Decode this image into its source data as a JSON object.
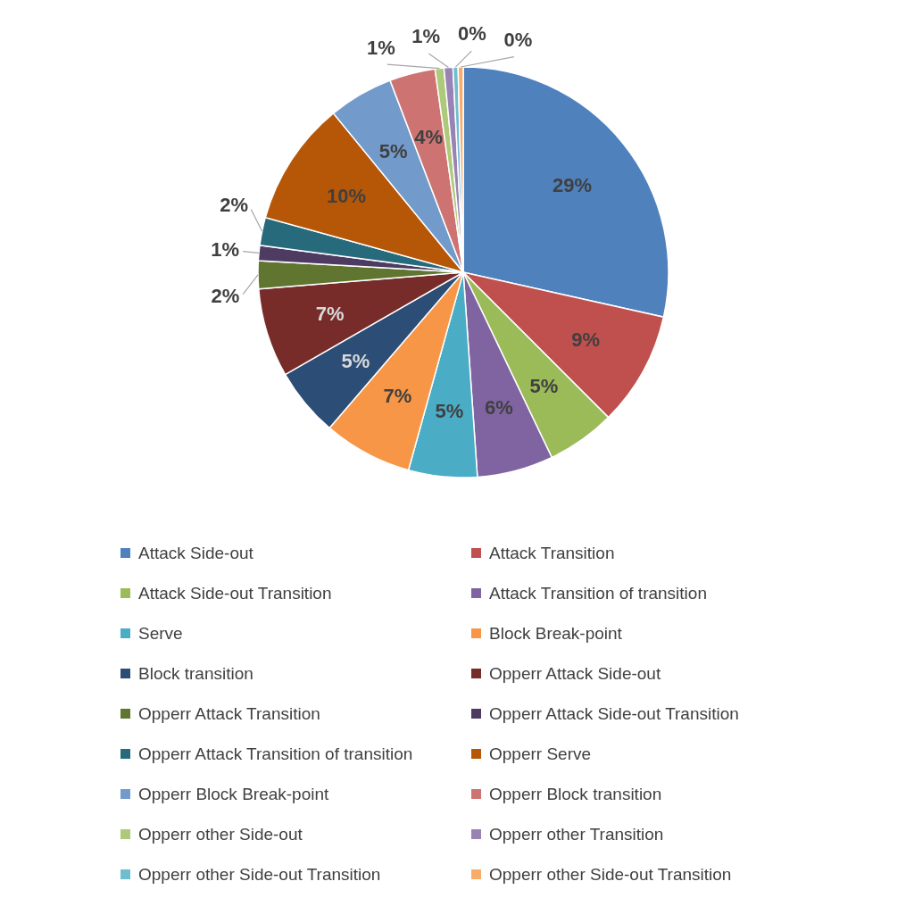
{
  "chart_data": {
    "type": "pie",
    "categories": [
      "Attack Side-out",
      "Attack Transition",
      "Attack Side-out Transition",
      "Attack Transition of transition",
      "Serve",
      "Block Break-point",
      "Block transition",
      "Opperr Attack Side-out",
      "Opperr Attack Transition",
      "Opperr Attack Side-out Transition",
      "Opperr Attack Transition of transition",
      "Opperr Serve",
      "Opperr Block Break-point",
      "Opperr Block transition",
      "Opperr other Side-out",
      "Opperr other Transition",
      "Opperr other Side-out Transition",
      "Opperr other Side-out Transition"
    ],
    "values": [
      28.5,
      9.0,
      5.4,
      6.0,
      5.4,
      7.0,
      5.4,
      7.0,
      2.2,
      1.2,
      2.2,
      9.8,
      5.1,
      3.6,
      0.7,
      0.7,
      0.4,
      0.4
    ],
    "value_labels": [
      "29%",
      "9%",
      "5%",
      "6%",
      "5%",
      "7%",
      "5%",
      "7%",
      "2%",
      "1%",
      "2%",
      "10%",
      "5%",
      "4%",
      "1%",
      "1%",
      "0%",
      "0%"
    ],
    "colors": [
      "#4f81bd",
      "#c0504d",
      "#9bbb59",
      "#8064a2",
      "#4bacc6",
      "#f79646",
      "#2c4d75",
      "#772c2a",
      "#5f7530",
      "#4d3b62",
      "#276a7c",
      "#b65708",
      "#729aca",
      "#cd7371",
      "#afc97a",
      "#9983b5",
      "#6fbdd1",
      "#f9ab6b"
    ],
    "legend": "bottom"
  }
}
